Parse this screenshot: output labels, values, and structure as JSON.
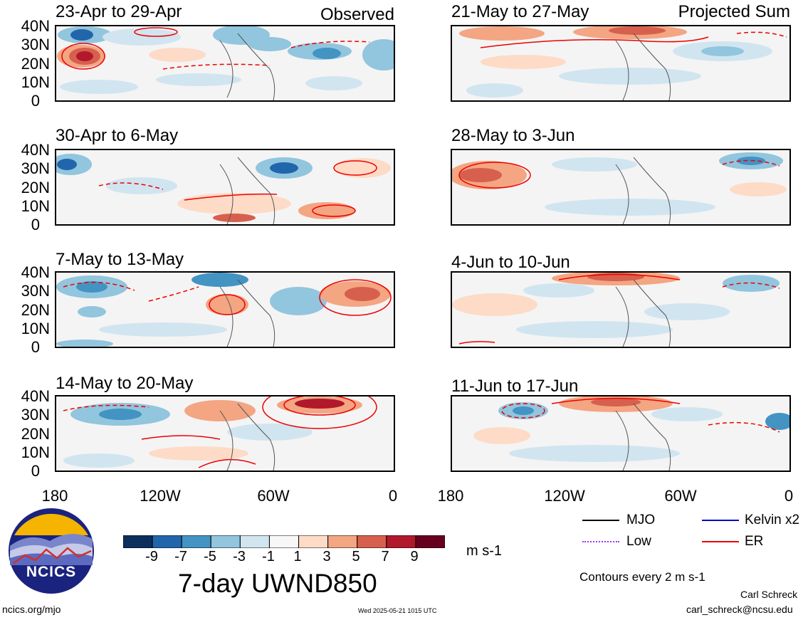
{
  "panels_left": [
    {
      "title": "23-Apr to 29-Apr",
      "corner": "Observed"
    },
    {
      "title": "30-Apr to 6-May",
      "corner": ""
    },
    {
      "title": "7-May to 13-May",
      "corner": ""
    },
    {
      "title": "14-May to 20-May",
      "corner": ""
    }
  ],
  "panels_right": [
    {
      "title": "21-May to 27-May",
      "corner": "Projected Sum"
    },
    {
      "title": "28-May to 3-Jun",
      "corner": ""
    },
    {
      "title": "4-Jun to 10-Jun",
      "corner": ""
    },
    {
      "title": "11-Jun to 17-Jun",
      "corner": ""
    }
  ],
  "lat_labels": [
    "40N",
    "30N",
    "20N",
    "10N",
    "0"
  ],
  "lon_labels": [
    "180",
    "120W",
    "60W",
    "0"
  ],
  "colorbar": {
    "labels": [
      "-9",
      "-7",
      "-5",
      "-3",
      "-1",
      "1",
      "3",
      "5",
      "7",
      "9"
    ],
    "colors": [
      "#0d2f5e",
      "#2166ac",
      "#4393c3",
      "#92c5de",
      "#d1e5f0",
      "#f7f7f7",
      "#fddbc7",
      "#f4a582",
      "#d6604d",
      "#b2182b",
      "#67001f"
    ],
    "units": "m s-1",
    "title": "7-day UWND850"
  },
  "legend": {
    "items": [
      {
        "label": "MJO",
        "color": "#000000"
      },
      {
        "label": "Kelvin x2",
        "color": "#0000cc"
      },
      {
        "label": "Low",
        "color": "#9933ff"
      },
      {
        "label": "ER",
        "color": "#ee0000"
      }
    ],
    "contours": "Contours every 2 m s-1"
  },
  "footer": {
    "logo_text": "NCICS",
    "url": "ncics.org/mjo",
    "timestamp": "Wed 2025-05-21 1015 UTC",
    "author": "Carl Schreck",
    "email": "carl_schreck@ncsu.edu"
  }
}
